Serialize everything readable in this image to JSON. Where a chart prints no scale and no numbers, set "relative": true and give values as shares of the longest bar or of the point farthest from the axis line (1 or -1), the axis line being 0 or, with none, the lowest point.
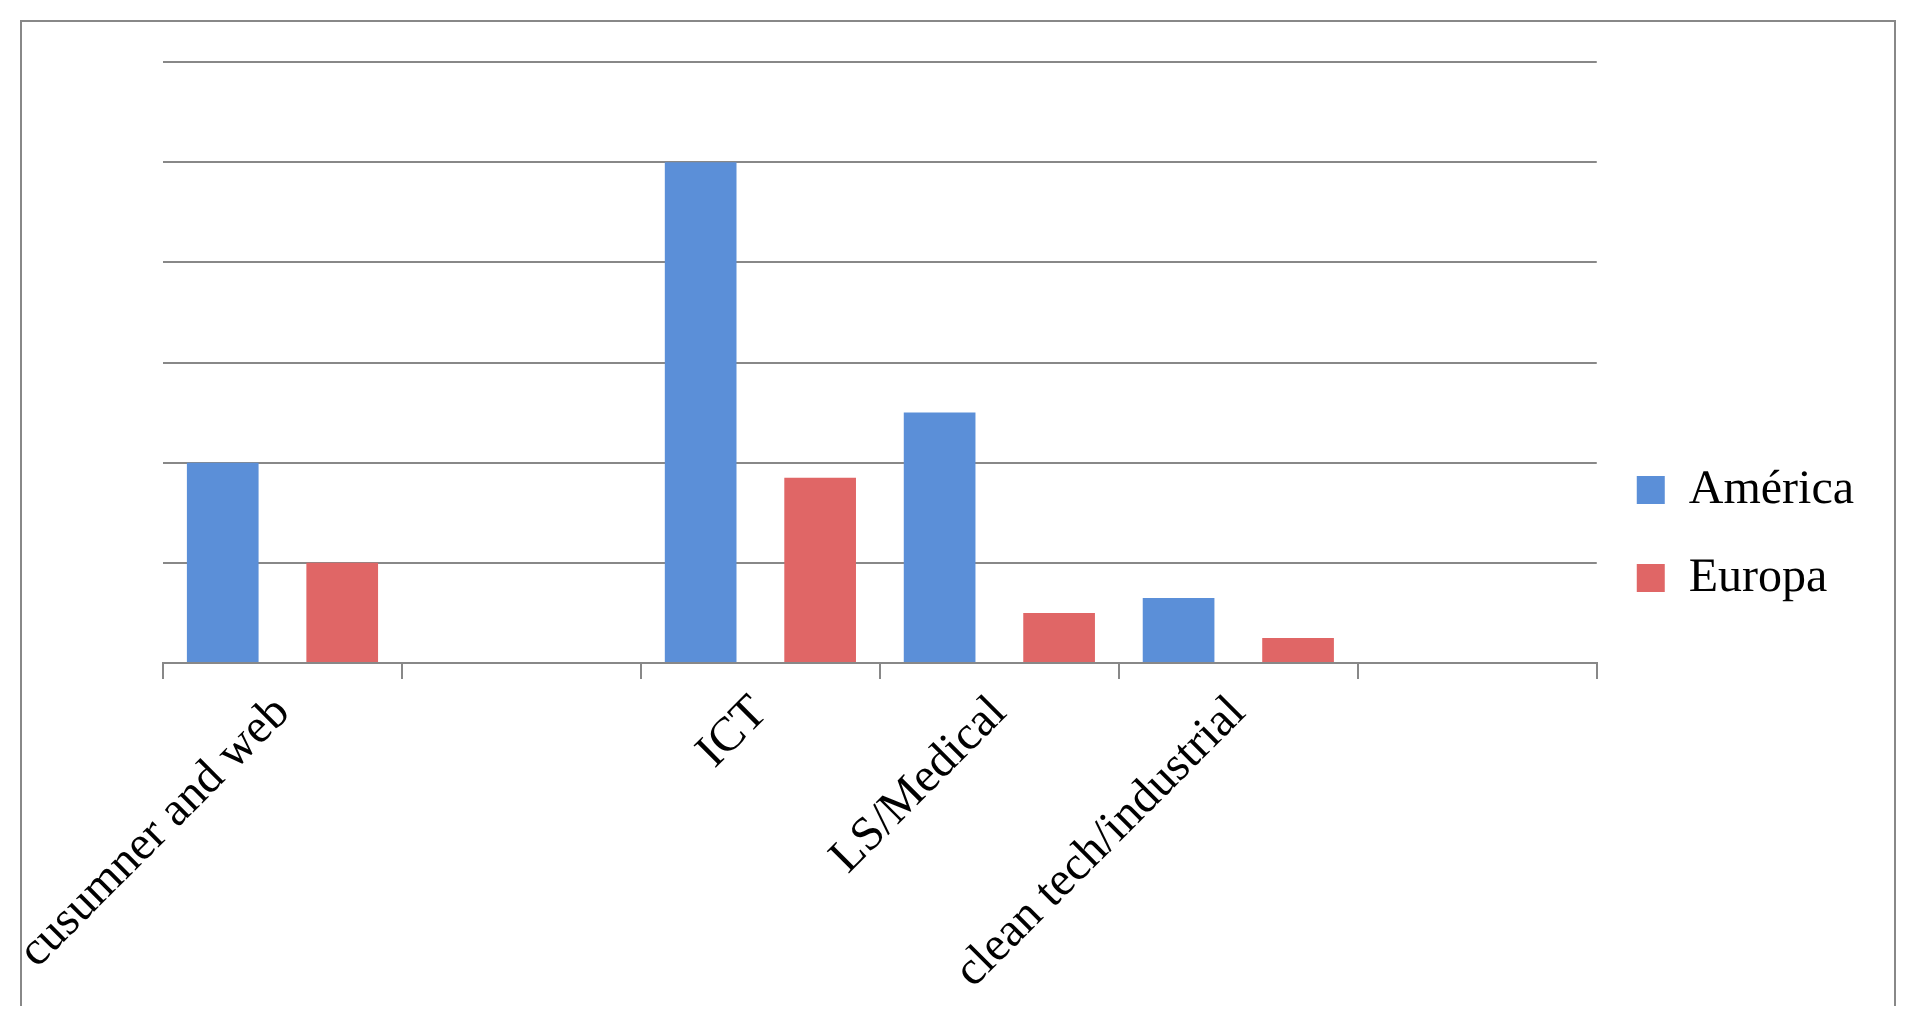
{
  "chart_data": {
    "type": "bar",
    "relative": true,
    "grid": "y",
    "legend": "right",
    "categories": [
      "cusumner and web",
      null,
      "ICT",
      "LS/Medical",
      "clean tech/industrial",
      null
    ],
    "series": [
      {
        "name": "América",
        "color": "#5b8fd8",
        "values": [
          0.4,
          null,
          1,
          0.5,
          0.13,
          null
        ]
      },
      {
        "name": "Europa",
        "color": "#e06666",
        "values": [
          0.2,
          null,
          0.37,
          0.1,
          0.05,
          null
        ]
      }
    ]
  }
}
